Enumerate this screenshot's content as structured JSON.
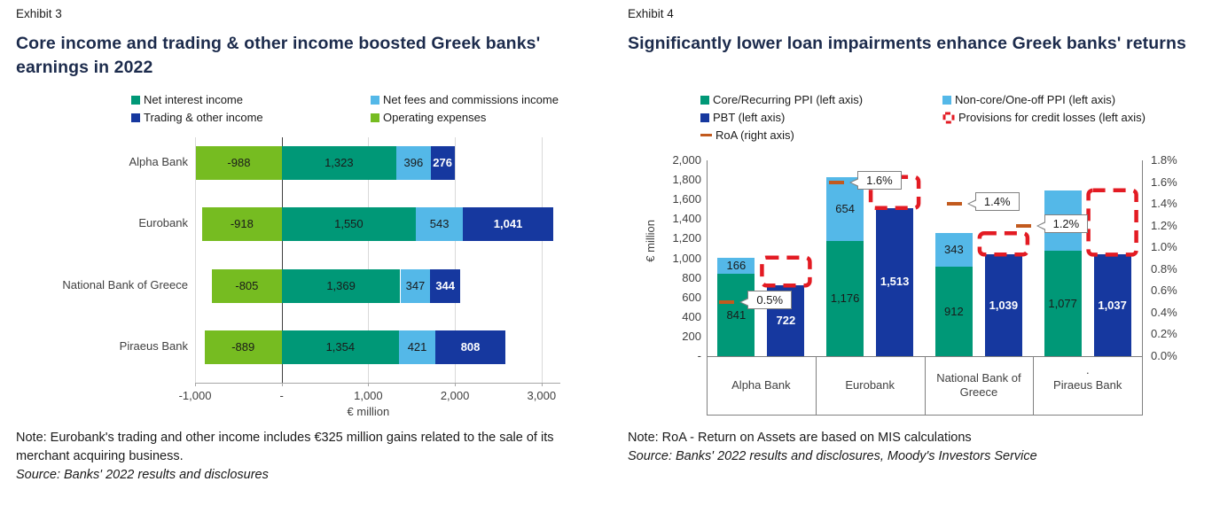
{
  "chart_data": [
    {
      "type": "bar",
      "orientation": "horizontal",
      "exhibit": "Exhibit 3",
      "title": "Core income and trading & other income boosted Greek banks' earnings in 2022",
      "categories": [
        "Alpha Bank",
        "Eurobank",
        "National Bank of Greece",
        "Piraeus Bank"
      ],
      "series": [
        {
          "name": "Net interest income",
          "color": "#009877",
          "values": [
            1323,
            1550,
            1369,
            1354
          ]
        },
        {
          "name": "Net fees and commissions income",
          "color": "#54b8e8",
          "values": [
            396,
            543,
            347,
            421
          ]
        },
        {
          "name": "Trading & other income",
          "color": "#16389f",
          "values": [
            276,
            1041,
            344,
            808
          ]
        },
        {
          "name": "Operating expenses",
          "color": "#76bc21",
          "values": [
            -988,
            -918,
            -805,
            -889
          ]
        }
      ],
      "legend_columns": [
        [
          "Net interest income",
          "Trading & other income"
        ],
        [
          "Net fees and commissions income",
          "Operating expenses"
        ]
      ],
      "xlabel": "€ million",
      "xlim": [
        -1000,
        3218
      ],
      "xtick_values": [
        -1000,
        0,
        1000,
        2000,
        3000
      ],
      "xtick_labels": [
        "-1,000",
        "-",
        "1,000",
        "2,000",
        "3,000"
      ],
      "grid": "vertical-gridlines",
      "legend_position": "top",
      "note": "Note: Eurobank's trading and other income includes €325 million gains related to the sale of its merchant acquiring business.",
      "source": "Source: Banks' 2022 results and disclosures"
    },
    {
      "type": "bar",
      "orientation": "vertical",
      "exhibit": "Exhibit 4",
      "title": "Significantly lower loan impairments enhance Greek banks' returns",
      "categories": [
        "Alpha Bank",
        "Eurobank",
        "National Bank of Greece",
        "Piraeus Bank"
      ],
      "stack_series": [
        {
          "name": "Core/Recurring PPI (left axis)",
          "color": "#009877",
          "values": [
            841,
            1176,
            912,
            1077
          ]
        },
        {
          "name": "Non-core/One-off PPI  (left axis)",
          "color": "#54b8e8",
          "values": [
            166,
            654,
            343,
            617
          ]
        }
      ],
      "pbt_series": {
        "name": "PBT (left axis)",
        "color": "#16389f",
        "values": [
          722,
          1513,
          1039,
          1037
        ]
      },
      "provisions_series": {
        "name": "Provisions for credit losses (left axis)",
        "color": "#e31b23",
        "depiction": "dashed box from PBT top up to total PPI"
      },
      "roa_series": {
        "name": "RoA (right axis)",
        "color": "#c25a1e",
        "values_pct": [
          0.5,
          1.6,
          1.4,
          1.2
        ],
        "labels": [
          "0.5%",
          "1.6%",
          "1.4%",
          "1.2%"
        ]
      },
      "ylabel_left": "€ million",
      "ylim_left": [
        0,
        2000
      ],
      "ytick_left_values": [
        2000,
        1800,
        1600,
        1400,
        1200,
        1000,
        800,
        600,
        400,
        200,
        0
      ],
      "ytick_left_labels": [
        "2,000",
        "1,800",
        "1,600",
        "1,400",
        "1,200",
        "1,000",
        "800",
        "600",
        "400",
        "200",
        "-"
      ],
      "ylim_right_pct": [
        0,
        1.8
      ],
      "ytick_right_pct_values": [
        1.8,
        1.6,
        1.4,
        1.2,
        1.0,
        0.8,
        0.6,
        0.4,
        0.2,
        0.0
      ],
      "ytick_right_labels": [
        "1.8%",
        "1.6%",
        "1.4%",
        "1.2%",
        "1.0%",
        "0.8%",
        "0.6%",
        "0.4%",
        "0.2%",
        "0.0%"
      ],
      "grid": "none",
      "legend_position": "top",
      "stray_label": ".",
      "note": "Note: RoA - Return on Assets are based on MIS calculations",
      "source": "Source: Banks' 2022 results and disclosures, Moody's Investors Service"
    }
  ]
}
